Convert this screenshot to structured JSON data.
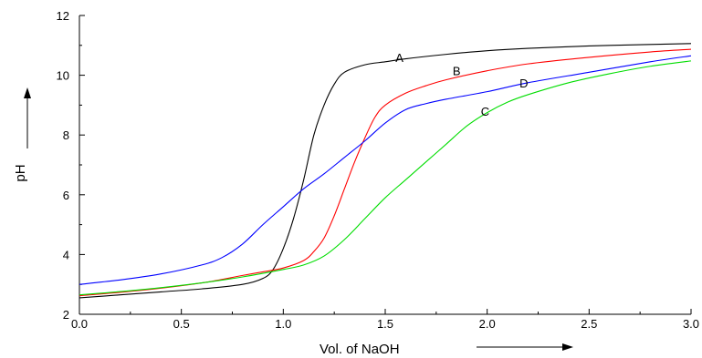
{
  "chart_data": {
    "type": "line",
    "xlabel": "Vol. of NaOH",
    "ylabel": "pH",
    "xlim": [
      0.0,
      3.0
    ],
    "ylim": [
      2,
      12
    ],
    "x_ticks": [
      "0.0",
      "0.5",
      "1.0",
      "1.5",
      "2.0",
      "2.5",
      "3.0"
    ],
    "y_ticks": [
      "2",
      "4",
      "6",
      "8",
      "10",
      "12"
    ],
    "grid": false,
    "series": [
      {
        "name": "A",
        "color": "#000000",
        "points": [
          [
            0.0,
            2.55
          ],
          [
            0.2,
            2.65
          ],
          [
            0.4,
            2.75
          ],
          [
            0.6,
            2.85
          ],
          [
            0.8,
            3.0
          ],
          [
            0.9,
            3.2
          ],
          [
            0.95,
            3.5
          ],
          [
            1.0,
            4.2
          ],
          [
            1.05,
            5.2
          ],
          [
            1.1,
            6.5
          ],
          [
            1.15,
            8.0
          ],
          [
            1.2,
            9.0
          ],
          [
            1.25,
            9.7
          ],
          [
            1.3,
            10.1
          ],
          [
            1.4,
            10.35
          ],
          [
            1.5,
            10.45
          ],
          [
            1.6,
            10.55
          ],
          [
            1.8,
            10.7
          ],
          [
            2.0,
            10.82
          ],
          [
            2.2,
            10.9
          ],
          [
            2.5,
            10.98
          ],
          [
            2.8,
            11.03
          ],
          [
            3.0,
            11.06
          ]
        ]
      },
      {
        "name": "B",
        "color": "#ff0000",
        "points": [
          [
            0.0,
            2.62
          ],
          [
            0.3,
            2.8
          ],
          [
            0.6,
            3.05
          ],
          [
            0.8,
            3.3
          ],
          [
            0.9,
            3.42
          ],
          [
            1.0,
            3.55
          ],
          [
            1.1,
            3.8
          ],
          [
            1.15,
            4.1
          ],
          [
            1.2,
            4.55
          ],
          [
            1.25,
            5.3
          ],
          [
            1.3,
            6.2
          ],
          [
            1.35,
            7.1
          ],
          [
            1.4,
            7.9
          ],
          [
            1.45,
            8.6
          ],
          [
            1.5,
            9.0
          ],
          [
            1.6,
            9.4
          ],
          [
            1.7,
            9.65
          ],
          [
            1.8,
            9.85
          ],
          [
            2.0,
            10.15
          ],
          [
            2.2,
            10.38
          ],
          [
            2.5,
            10.6
          ],
          [
            2.8,
            10.78
          ],
          [
            3.0,
            10.87
          ]
        ]
      },
      {
        "name": "C",
        "color": "#00dd00",
        "points": [
          [
            0.0,
            2.65
          ],
          [
            0.3,
            2.82
          ],
          [
            0.6,
            3.05
          ],
          [
            0.8,
            3.25
          ],
          [
            1.0,
            3.5
          ],
          [
            1.1,
            3.65
          ],
          [
            1.2,
            3.95
          ],
          [
            1.3,
            4.5
          ],
          [
            1.4,
            5.2
          ],
          [
            1.5,
            5.9
          ],
          [
            1.6,
            6.5
          ],
          [
            1.7,
            7.1
          ],
          [
            1.8,
            7.7
          ],
          [
            1.9,
            8.3
          ],
          [
            2.0,
            8.75
          ],
          [
            2.1,
            9.1
          ],
          [
            2.2,
            9.35
          ],
          [
            2.4,
            9.75
          ],
          [
            2.6,
            10.05
          ],
          [
            2.8,
            10.3
          ],
          [
            3.0,
            10.48
          ]
        ]
      },
      {
        "name": "D",
        "color": "#0000ff",
        "points": [
          [
            0.0,
            3.0
          ],
          [
            0.2,
            3.15
          ],
          [
            0.4,
            3.35
          ],
          [
            0.6,
            3.65
          ],
          [
            0.7,
            3.9
          ],
          [
            0.8,
            4.35
          ],
          [
            0.9,
            5.0
          ],
          [
            1.0,
            5.6
          ],
          [
            1.1,
            6.2
          ],
          [
            1.2,
            6.7
          ],
          [
            1.3,
            7.25
          ],
          [
            1.4,
            7.8
          ],
          [
            1.5,
            8.4
          ],
          [
            1.6,
            8.85
          ],
          [
            1.7,
            9.05
          ],
          [
            1.8,
            9.2
          ],
          [
            2.0,
            9.45
          ],
          [
            2.2,
            9.75
          ],
          [
            2.5,
            10.1
          ],
          [
            2.8,
            10.45
          ],
          [
            3.0,
            10.65
          ]
        ]
      }
    ],
    "annotations": [
      {
        "text": "A",
        "x": 1.57,
        "y": 10.6
      },
      {
        "text": "B",
        "x": 1.85,
        "y": 10.15
      },
      {
        "text": "C",
        "x": 1.99,
        "y": 8.8
      },
      {
        "text": "D",
        "x": 2.18,
        "y": 9.75
      }
    ]
  }
}
